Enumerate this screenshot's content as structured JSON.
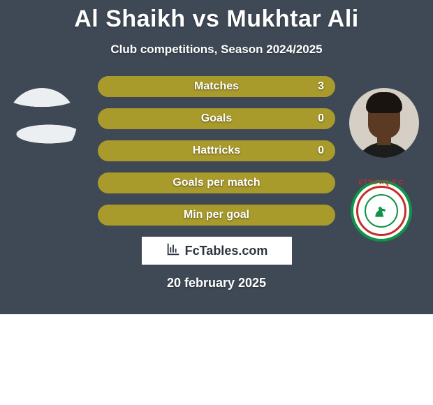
{
  "title": "Al Shaikh vs Mukhtar Ali",
  "subtitle": "Club competitions, Season 2024/2025",
  "date": "20 february 2025",
  "watermark": "FcTables.com",
  "colors": {
    "background": "#3f4955",
    "bar_full": "#a89a2b",
    "bar_empty": "#a89a2b",
    "bar_track_dark": "#8a7e24",
    "text": "#ffffff"
  },
  "bars": [
    {
      "label": "Matches",
      "value_left": "",
      "value_right": "3",
      "fill_pct": 100,
      "fill_color": "#a89a2b",
      "track_color": "#a89a2b"
    },
    {
      "label": "Goals",
      "value_left": "",
      "value_right": "0",
      "fill_pct": 100,
      "fill_color": "#a89a2b",
      "track_color": "#a89a2b"
    },
    {
      "label": "Hattricks",
      "value_left": "",
      "value_right": "0",
      "fill_pct": 100,
      "fill_color": "#a89a2b",
      "track_color": "#a89a2b"
    },
    {
      "label": "Goals per match",
      "value_left": "",
      "value_right": "",
      "fill_pct": 100,
      "fill_color": "#a89a2b",
      "track_color": "#a89a2b"
    },
    {
      "label": "Min per goal",
      "value_left": "",
      "value_right": "",
      "fill_pct": 100,
      "fill_color": "#a89a2b",
      "track_color": "#a89a2b"
    }
  ],
  "club_name": "ETTIFAQ F.C"
}
